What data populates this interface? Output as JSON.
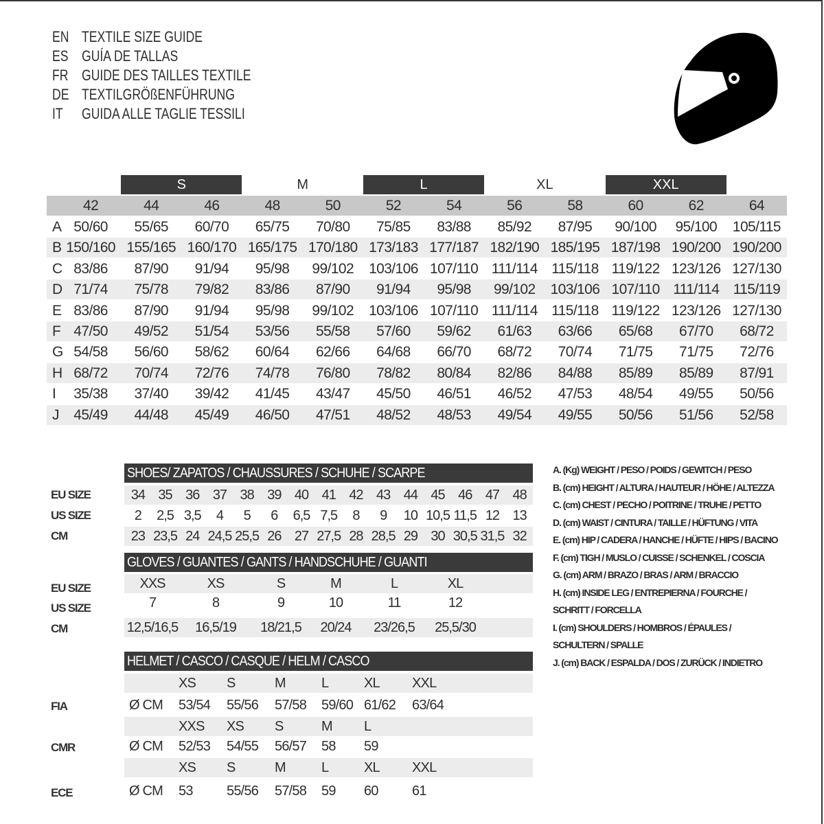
{
  "titles": [
    {
      "code": "EN",
      "text": "TEXTILE SIZE GUIDE"
    },
    {
      "code": "ES",
      "text": "GUÍA DE TALLAS"
    },
    {
      "code": "FR",
      "text": "GUIDE DES TAILLES TEXTILE"
    },
    {
      "code": "DE",
      "text": "TEXTILGRÖßENFÜHRUNG"
    },
    {
      "code": "IT",
      "text": "GUIDA ALLE TAGLIE TESSILI"
    }
  ],
  "logo": {
    "icon": "helmet-icon"
  },
  "colors": {
    "header_dark": "#3a3a3a",
    "size_row": "#c8c8c8",
    "stripe": "#ececec"
  },
  "textile": {
    "groups": [
      "S",
      "M",
      "L",
      "XL",
      "XXL"
    ],
    "sizes": [
      "42",
      "44",
      "46",
      "48",
      "50",
      "52",
      "54",
      "56",
      "58",
      "60",
      "62",
      "64"
    ],
    "rows": [
      {
        "letter": "A",
        "values": [
          "50/60",
          "55/65",
          "60/70",
          "65/75",
          "70/80",
          "75/85",
          "83/88",
          "85/92",
          "87/95",
          "90/100",
          "95/100",
          "105/115"
        ]
      },
      {
        "letter": "B",
        "values": [
          "150/160",
          "155/165",
          "160/170",
          "165/175",
          "170/180",
          "173/183",
          "177/187",
          "182/190",
          "185/195",
          "187/198",
          "190/200",
          "190/200"
        ]
      },
      {
        "letter": "C",
        "values": [
          "83/86",
          "87/90",
          "91/94",
          "95/98",
          "99/102",
          "103/106",
          "107/110",
          "111/114",
          "115/118",
          "119/122",
          "123/126",
          "127/130"
        ]
      },
      {
        "letter": "D",
        "values": [
          "71/74",
          "75/78",
          "79/82",
          "83/86",
          "87/90",
          "91/94",
          "95/98",
          "99/102",
          "103/106",
          "107/110",
          "111/114",
          "115/119"
        ]
      },
      {
        "letter": "E",
        "values": [
          "83/86",
          "87/90",
          "91/94",
          "95/98",
          "99/102",
          "103/106",
          "107/110",
          "111/114",
          "115/118",
          "119/122",
          "123/126",
          "127/130"
        ]
      },
      {
        "letter": "F",
        "values": [
          "47/50",
          "49/52",
          "51/54",
          "53/56",
          "55/58",
          "57/60",
          "59/62",
          "61/63",
          "63/66",
          "65/68",
          "67/70",
          "68/72"
        ]
      },
      {
        "letter": "G",
        "values": [
          "54/58",
          "56/60",
          "58/62",
          "60/64",
          "62/66",
          "64/68",
          "66/70",
          "68/72",
          "70/74",
          "71/75",
          "71/75",
          "72/76"
        ]
      },
      {
        "letter": "H",
        "values": [
          "68/72",
          "70/74",
          "72/76",
          "74/78",
          "76/80",
          "78/82",
          "80/84",
          "82/86",
          "84/88",
          "85/89",
          "85/89",
          "87/91"
        ]
      },
      {
        "letter": "I",
        "values": [
          "35/38",
          "37/40",
          "39/42",
          "41/45",
          "43/47",
          "45/50",
          "46/51",
          "46/52",
          "47/53",
          "48/54",
          "49/55",
          "50/56"
        ]
      },
      {
        "letter": "J",
        "values": [
          "45/49",
          "44/48",
          "45/49",
          "46/50",
          "47/51",
          "48/52",
          "48/53",
          "49/54",
          "49/55",
          "50/56",
          "51/56",
          "52/58"
        ]
      }
    ]
  },
  "shoes": {
    "title": "SHOES/ ZAPATOS / CHAUSSURES / SCHUHE / SCARPE",
    "rows": [
      {
        "label": "EU SIZE",
        "values": [
          "34",
          "35",
          "36",
          "37",
          "38",
          "39",
          "40",
          "41",
          "42",
          "43",
          "44",
          "45",
          "46",
          "47",
          "48"
        ]
      },
      {
        "label": "US SIZE",
        "values": [
          "2",
          "2,5",
          "3,5",
          "4",
          "5",
          "6",
          "6,5",
          "7,5",
          "8",
          "9",
          "10",
          "10,5",
          "11,5",
          "12",
          "13"
        ]
      },
      {
        "label": "CM",
        "values": [
          "23",
          "23,5",
          "24",
          "24,5",
          "25,5",
          "26",
          "27",
          "27,5",
          "28",
          "28,5",
          "29",
          "30",
          "30,5",
          "31,5",
          "32"
        ]
      }
    ]
  },
  "gloves": {
    "title": "GLOVES / GUANTES / GANTS / HANDSCHUHE / GUANTI",
    "rows": [
      {
        "label": "EU SIZE",
        "values": [
          "XXS",
          "XS",
          "S",
          "M",
          "L",
          "XL"
        ]
      },
      {
        "label": "US SIZE",
        "values": [
          "7",
          "8",
          "9",
          "10",
          "11",
          "12"
        ]
      },
      {
        "label": "CM",
        "values": [
          "12,5/16,5",
          "16,5/19",
          "18/21,5",
          "20/24",
          "23/26,5",
          "25,5/30"
        ]
      }
    ]
  },
  "helmet": {
    "title": "HELMET / CASCO / CASQUE / HELM / CASCO",
    "unit": "Ø CM",
    "standards": [
      {
        "label": "FIA",
        "sizes": [
          "XS",
          "S",
          "M",
          "L",
          "XL",
          "XXL"
        ],
        "values": [
          "53/54",
          "55/56",
          "57/58",
          "59/60",
          "61/62",
          "63/64"
        ]
      },
      {
        "label": "CMR",
        "sizes": [
          "XXS",
          "XS",
          "S",
          "M",
          "L"
        ],
        "values": [
          "52/53",
          "54/55",
          "56/57",
          "58",
          "59"
        ]
      },
      {
        "label": "ECE",
        "sizes": [
          "XS",
          "S",
          "M",
          "L",
          "XL",
          "XXL"
        ],
        "values": [
          "53",
          "55/56",
          "57/58",
          "59",
          "60",
          "61"
        ]
      }
    ]
  },
  "legend": [
    "A. (Kg) WEIGHT / PESO / POIDS / GEWITCH / PESO",
    "B. (cm) HEIGHT / ALTURA / HAUTEUR / HÖHE / ALTEZZA",
    "C. (cm) CHEST / PECHO / POITRINE / TRUHE / PETTO",
    "D. (cm) WAIST / CINTURA / TAILLE / HÜFTUNG / VITA",
    "E. (cm) HIP / CADERA / HANCHE / HÜFTE / HIPS /  BACINO",
    "F.  (cm) TIGH / MUSLO / CUISSE / SCHENKEL / COSCIA",
    "G. (cm) ARM  / BRAZO / BRAS / ARM / BRACCIO",
    "H. (cm) INSIDE LEG / ENTREPIERNA / FOURCHE /",
    "SCHRITT / FORCELLA",
    "I.  (cm) SHOULDERS / HOMBROS / ÉPAULES /",
    "SCHULTERN / SPALLE",
    "J. (cm) BACK / ESPALDA / DOS / ZURÜCK / INDIETRO"
  ]
}
